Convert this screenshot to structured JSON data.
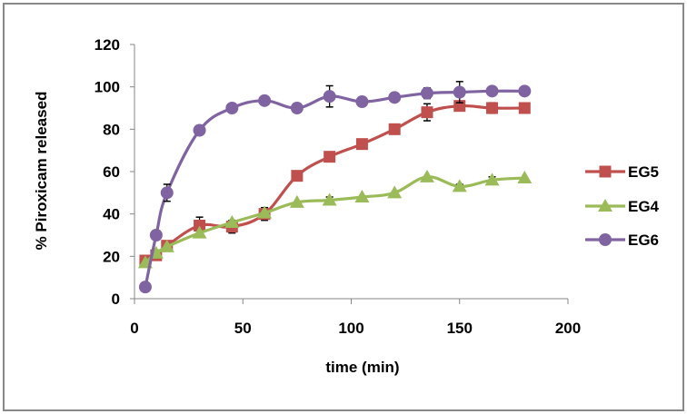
{
  "chart_data": {
    "type": "line",
    "title": "",
    "xlabel": "time (min)",
    "ylabel": "% Piroxicam released",
    "xlim": [
      0,
      200
    ],
    "ylim": [
      0,
      120
    ],
    "xticks": [
      0,
      50,
      100,
      150,
      200
    ],
    "yticks": [
      0,
      20,
      40,
      60,
      80,
      100,
      120
    ],
    "xtick_labels": [
      "0",
      "50",
      "100",
      "150",
      "200"
    ],
    "ytick_labels": [
      "0",
      "20",
      "40",
      "60",
      "80",
      "100",
      "120"
    ],
    "grid": false,
    "legend_position": "right",
    "x": [
      5,
      10,
      15,
      30,
      45,
      60,
      75,
      90,
      105,
      120,
      135,
      150,
      165,
      180
    ],
    "series": [
      {
        "name": "EG5",
        "color": "#C0504D",
        "marker": "square",
        "values": [
          18,
          20.5,
          25,
          34.5,
          34,
          40,
          58,
          67,
          73,
          80,
          88,
          91,
          90,
          90
        ],
        "errors": [
          0,
          0,
          1.5,
          4,
          3,
          3,
          0,
          0,
          0,
          0,
          4,
          0,
          2.5,
          0
        ]
      },
      {
        "name": "EG4",
        "color": "#9BBB59",
        "marker": "triangle",
        "values": [
          17,
          21.5,
          24.5,
          31,
          36,
          40.5,
          45.5,
          46.5,
          48,
          50,
          57.5,
          53,
          56,
          57
        ],
        "errors": [
          0,
          0,
          0,
          0,
          0,
          0,
          0,
          1.5,
          0,
          0,
          0,
          1,
          1.5,
          0
        ]
      },
      {
        "name": "EG6",
        "color": "#8064A2",
        "marker": "circle",
        "values": [
          5.5,
          30,
          50,
          79.5,
          90,
          93.5,
          90,
          95.5,
          93,
          95,
          97,
          97.5,
          98,
          98
        ],
        "errors": [
          0,
          0,
          4,
          0,
          0,
          0,
          0,
          5,
          0,
          0,
          2.5,
          5,
          0,
          0
        ]
      }
    ]
  }
}
